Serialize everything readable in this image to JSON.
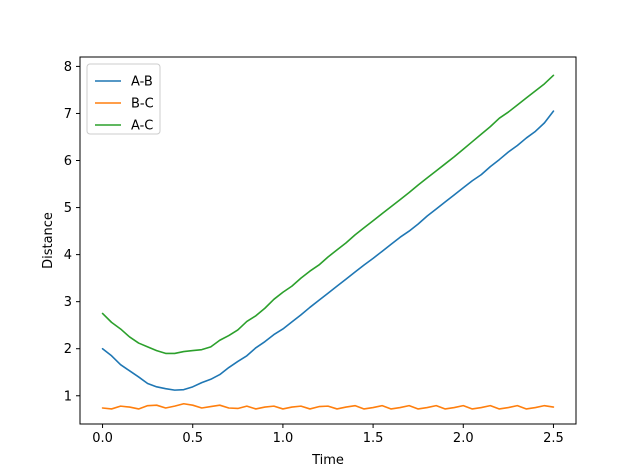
{
  "chart_data": {
    "type": "line",
    "title": "",
    "xlabel": "Time",
    "ylabel": "Distance",
    "xlim": [
      -0.125,
      2.625
    ],
    "ylim": [
      0.4,
      8.2
    ],
    "xticks": [
      0.0,
      0.5,
      1.0,
      1.5,
      2.0,
      2.5
    ],
    "xtick_labels": [
      "0.0",
      "0.5",
      "1.0",
      "1.5",
      "2.0",
      "2.5"
    ],
    "yticks": [
      1,
      2,
      3,
      4,
      5,
      6,
      7,
      8
    ],
    "ytick_labels": [
      "1",
      "2",
      "3",
      "4",
      "5",
      "6",
      "7",
      "8"
    ],
    "grid": false,
    "legend_position": "upper-left",
    "series": [
      {
        "name": "A-B",
        "color": "#1f77b4",
        "x": [
          0.0,
          0.05,
          0.1,
          0.15,
          0.2,
          0.25,
          0.3,
          0.35,
          0.4,
          0.45,
          0.5,
          0.55,
          0.6,
          0.65,
          0.7,
          0.75,
          0.8,
          0.85,
          0.9,
          0.95,
          1.0,
          1.05,
          1.1,
          1.15,
          1.2,
          1.25,
          1.3,
          1.35,
          1.4,
          1.45,
          1.5,
          1.55,
          1.6,
          1.65,
          1.7,
          1.75,
          1.8,
          1.85,
          1.9,
          1.95,
          2.0,
          2.05,
          2.1,
          2.15,
          2.2,
          2.25,
          2.3,
          2.35,
          2.4,
          2.45,
          2.5
        ],
        "y": [
          2.0,
          1.85,
          1.66,
          1.53,
          1.4,
          1.26,
          1.19,
          1.15,
          1.12,
          1.13,
          1.19,
          1.28,
          1.35,
          1.45,
          1.6,
          1.73,
          1.85,
          2.02,
          2.15,
          2.3,
          2.42,
          2.57,
          2.72,
          2.88,
          3.03,
          3.18,
          3.33,
          3.48,
          3.63,
          3.78,
          3.92,
          4.07,
          4.22,
          4.37,
          4.5,
          4.65,
          4.82,
          4.97,
          5.12,
          5.27,
          5.42,
          5.57,
          5.7,
          5.87,
          6.02,
          6.18,
          6.32,
          6.48,
          6.62,
          6.8,
          7.05
        ]
      },
      {
        "name": "B-C",
        "color": "#ff7f0e",
        "x": [
          0.0,
          0.05,
          0.1,
          0.15,
          0.2,
          0.25,
          0.3,
          0.35,
          0.4,
          0.45,
          0.5,
          0.55,
          0.6,
          0.65,
          0.7,
          0.75,
          0.8,
          0.85,
          0.9,
          0.95,
          1.0,
          1.05,
          1.1,
          1.15,
          1.2,
          1.25,
          1.3,
          1.35,
          1.4,
          1.45,
          1.5,
          1.55,
          1.6,
          1.65,
          1.7,
          1.75,
          1.8,
          1.85,
          1.9,
          1.95,
          2.0,
          2.05,
          2.1,
          2.15,
          2.2,
          2.25,
          2.3,
          2.35,
          2.4,
          2.45,
          2.5
        ],
        "y": [
          0.74,
          0.72,
          0.78,
          0.76,
          0.72,
          0.79,
          0.8,
          0.74,
          0.78,
          0.83,
          0.8,
          0.74,
          0.77,
          0.8,
          0.74,
          0.73,
          0.78,
          0.72,
          0.76,
          0.78,
          0.72,
          0.76,
          0.78,
          0.72,
          0.77,
          0.78,
          0.72,
          0.76,
          0.79,
          0.72,
          0.75,
          0.79,
          0.72,
          0.75,
          0.79,
          0.72,
          0.75,
          0.79,
          0.72,
          0.75,
          0.79,
          0.72,
          0.75,
          0.79,
          0.72,
          0.75,
          0.79,
          0.72,
          0.75,
          0.79,
          0.76
        ]
      },
      {
        "name": "A-C",
        "color": "#2ca02c",
        "x": [
          0.0,
          0.05,
          0.1,
          0.15,
          0.2,
          0.25,
          0.3,
          0.35,
          0.4,
          0.45,
          0.5,
          0.55,
          0.6,
          0.65,
          0.7,
          0.75,
          0.8,
          0.85,
          0.9,
          0.95,
          1.0,
          1.05,
          1.1,
          1.15,
          1.2,
          1.25,
          1.3,
          1.35,
          1.4,
          1.45,
          1.5,
          1.55,
          1.6,
          1.65,
          1.7,
          1.75,
          1.8,
          1.85,
          1.9,
          1.95,
          2.0,
          2.05,
          2.1,
          2.15,
          2.2,
          2.25,
          2.3,
          2.35,
          2.4,
          2.45,
          2.5
        ],
        "y": [
          2.75,
          2.56,
          2.42,
          2.25,
          2.12,
          2.04,
          1.96,
          1.9,
          1.9,
          1.94,
          1.96,
          1.98,
          2.04,
          2.18,
          2.28,
          2.4,
          2.58,
          2.7,
          2.86,
          3.05,
          3.2,
          3.33,
          3.5,
          3.65,
          3.78,
          3.95,
          4.1,
          4.25,
          4.42,
          4.57,
          4.72,
          4.87,
          5.02,
          5.17,
          5.32,
          5.48,
          5.63,
          5.78,
          5.93,
          6.08,
          6.24,
          6.4,
          6.56,
          6.72,
          6.9,
          7.03,
          7.18,
          7.33,
          7.48,
          7.63,
          7.81
        ]
      }
    ]
  }
}
